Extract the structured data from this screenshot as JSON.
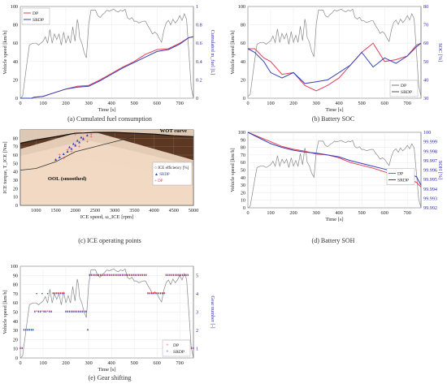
{
  "figure": {
    "captions": [
      "(a) Cumulated fuel consumption",
      "(b) Battery SOC",
      "(c) ICE operating points",
      "(d) Battery SOH",
      "(e) Gear shifting"
    ]
  },
  "chart_data": [
    {
      "id": "a",
      "type": "line",
      "xlabel": "Time [s]",
      "ylabel": "Vehicle speed [km/h]",
      "y2label": "Cumulated m_fuel [L]",
      "xlim": [
        0,
        760
      ],
      "ylim": [
        0,
        100
      ],
      "y2lim": [
        0,
        1
      ],
      "xticks": [
        "0",
        "100",
        "200",
        "300",
        "400",
        "500",
        "600",
        "700"
      ],
      "yticks": [
        "0",
        "20",
        "40",
        "60",
        "80",
        "100"
      ],
      "y2ticks": [
        "0",
        "0.2",
        "0.4",
        "0.6",
        "0.8",
        "1"
      ],
      "legend": [
        "DP",
        "SRDP"
      ],
      "legend_position": "top-left",
      "speed": {
        "x": [
          0,
          10,
          30,
          40,
          55,
          70,
          80,
          100,
          110,
          120,
          130,
          140,
          150,
          160,
          170,
          180,
          190,
          200,
          210,
          220,
          230,
          240,
          250,
          255,
          260,
          270,
          280,
          290,
          300,
          310,
          320,
          330,
          340,
          350,
          360,
          370,
          380,
          390,
          400,
          410,
          420,
          430,
          440,
          450,
          460,
          470,
          480,
          490,
          500,
          510,
          520,
          530,
          540,
          550,
          560,
          570,
          580,
          590,
          600,
          610,
          620,
          630,
          640,
          650,
          660,
          670,
          680,
          690,
          700,
          710,
          720,
          730,
          740,
          750,
          760
        ],
        "y": [
          0,
          2,
          40,
          58,
          60,
          60,
          58,
          62,
          67,
          60,
          75,
          60,
          70,
          64,
          70,
          58,
          72,
          60,
          68,
          60,
          78,
          62,
          86,
          80,
          66,
          60,
          50,
          44,
          80,
          96,
          96,
          96,
          90,
          88,
          91,
          93,
          96,
          95,
          96,
          97,
          95,
          94,
          96,
          95,
          97,
          88,
          86,
          88,
          84,
          84,
          82,
          83,
          84,
          84,
          79,
          75,
          70,
          72,
          70,
          65,
          61,
          74,
          82,
          85,
          80,
          86,
          82,
          85,
          90,
          85,
          92,
          86,
          50,
          12,
          0
        ]
      },
      "series": [
        {
          "name": "DP",
          "x": [
            0,
            50,
            60,
            100,
            150,
            200,
            250,
            300,
            350,
            400,
            450,
            500,
            550,
            600,
            650,
            700,
            740,
            760
          ],
          "y": [
            0,
            0,
            0.01,
            0.02,
            0.06,
            0.1,
            0.13,
            0.14,
            0.2,
            0.27,
            0.34,
            0.4,
            0.48,
            0.53,
            0.54,
            0.6,
            0.66,
            0.67
          ]
        },
        {
          "name": "SRDP",
          "x": [
            0,
            50,
            60,
            100,
            150,
            200,
            250,
            300,
            350,
            400,
            450,
            500,
            550,
            600,
            650,
            700,
            740,
            760
          ],
          "y": [
            0,
            0,
            0.01,
            0.02,
            0.06,
            0.1,
            0.12,
            0.13,
            0.19,
            0.26,
            0.33,
            0.39,
            0.45,
            0.51,
            0.53,
            0.59,
            0.66,
            0.67
          ]
        }
      ]
    },
    {
      "id": "b",
      "type": "line",
      "xlabel": "Time [s]",
      "ylabel": "Vehicle speed [km/h]",
      "y2label": "SOC [%]",
      "xlim": [
        0,
        760
      ],
      "ylim": [
        0,
        100
      ],
      "y2lim": [
        30,
        80
      ],
      "xticks": [
        "0",
        "100",
        "200",
        "300",
        "400",
        "500",
        "600",
        "700"
      ],
      "yticks": [
        "0",
        "20",
        "40",
        "60",
        "80",
        "100"
      ],
      "y2ticks": [
        "30",
        "40",
        "50",
        "60",
        "70",
        "80"
      ],
      "legend": [
        "DP",
        "SRDP"
      ],
      "legend_position": "bottom-right",
      "series": [
        {
          "name": "DP",
          "x": [
            0,
            30,
            70,
            100,
            150,
            200,
            250,
            300,
            350,
            400,
            450,
            500,
            550,
            600,
            650,
            700,
            740,
            760
          ],
          "y": [
            57,
            57,
            52,
            50,
            43,
            44,
            37,
            34,
            37,
            41,
            48,
            55,
            60,
            50,
            51,
            53,
            59,
            60
          ]
        },
        {
          "name": "SRDP",
          "x": [
            0,
            30,
            70,
            100,
            150,
            200,
            250,
            300,
            350,
            400,
            450,
            500,
            550,
            600,
            650,
            700,
            740,
            760
          ],
          "y": [
            57,
            55,
            50,
            44,
            41,
            44,
            38,
            39,
            40,
            44,
            48,
            55,
            47,
            52,
            49,
            53,
            58,
            60
          ]
        }
      ]
    },
    {
      "id": "c",
      "type": "heatmap",
      "xlabel": "ICE speed, ω_ICE [rpm]",
      "ylabel": "ICE torque, T_ICE [Nm]",
      "xlim": [
        600,
        5000
      ],
      "ylim": [
        0,
        90
      ],
      "xticks": [
        "1000",
        "1500",
        "2000",
        "2500",
        "3000",
        "3500",
        "4000",
        "4500",
        "5000"
      ],
      "yticks": [
        "0",
        "10",
        "20",
        "30",
        "40",
        "50",
        "60",
        "70",
        "80"
      ],
      "legend": [
        "ICE efficiency [%]",
        "SRDP",
        "DP"
      ],
      "legend_position": "right",
      "annotations": [
        "WOT curve",
        "OOL (smoothed)"
      ],
      "wot": {
        "x": [
          600,
          1000,
          1500,
          2000,
          2500,
          3000,
          3500,
          4000,
          4500,
          5000
        ],
        "y": [
          74,
          78,
          82,
          86,
          87,
          87,
          86,
          85,
          83,
          82
        ]
      },
      "ool": {
        "x": [
          600,
          1000,
          1500,
          2000,
          2500,
          3000,
          3500
        ],
        "y": [
          42,
          44,
          52,
          64,
          70,
          76,
          82
        ]
      },
      "points": {
        "SRDP": {
          "x": [
            1500,
            1600,
            1700,
            1800,
            1900,
            2000,
            2100,
            2200,
            2300,
            1850,
            1950,
            2050,
            2150
          ],
          "y": [
            55,
            58,
            62,
            65,
            68,
            72,
            76,
            80,
            84,
            70,
            74,
            78,
            82
          ]
        },
        "DP": {
          "x": [
            1600,
            1800,
            2000,
            2200,
            2400,
            1700,
            1900,
            2100,
            2300,
            2000,
            2200,
            1500,
            2400
          ],
          "y": [
            60,
            66,
            72,
            80,
            84,
            56,
            64,
            70,
            76,
            84,
            86,
            54,
            82
          ]
        }
      }
    },
    {
      "id": "d",
      "type": "line",
      "xlabel": "Time [s]",
      "ylabel": "Vehicle speed [km/h]",
      "y2label": "SOH [%]",
      "xlim": [
        0,
        760
      ],
      "ylim": [
        0,
        100
      ],
      "y2lim": [
        99.992,
        100
      ],
      "xticks": [
        "0",
        "100",
        "200",
        "300",
        "400",
        "500",
        "600",
        "700"
      ],
      "yticks": [
        "0",
        "10",
        "20",
        "30",
        "40",
        "50",
        "60",
        "70",
        "80",
        "90",
        "100"
      ],
      "y2ticks": [
        "99.992",
        "99.993",
        "99.994",
        "99.995",
        "99.996",
        "99.997",
        "99.998",
        "99.999",
        "100"
      ],
      "legend": [
        "DP",
        "SRDP"
      ],
      "legend_position": "center-right",
      "series": [
        {
          "name": "DP",
          "x": [
            0,
            50,
            100,
            150,
            200,
            250,
            300,
            350,
            400,
            450,
            500,
            550,
            600,
            650,
            700,
            740,
            760
          ],
          "y": [
            100,
            99.9995,
            99.999,
            99.9985,
            99.9982,
            99.998,
            99.9977,
            99.9976,
            99.9973,
            99.9968,
            99.9965,
            99.9962,
            99.9958,
            99.9955,
            99.9951,
            99.9947,
            99.9942
          ]
        },
        {
          "name": "SRDP",
          "x": [
            0,
            50,
            100,
            150,
            200,
            250,
            300,
            350,
            400,
            450,
            500,
            550,
            600,
            650,
            700,
            740,
            760
          ],
          "y": [
            100,
            99.9994,
            99.9988,
            99.9984,
            99.9981,
            99.9979,
            99.9978,
            99.9976,
            99.9974,
            99.997,
            99.9967,
            99.9964,
            99.9961,
            99.9958,
            99.9956,
            99.9953,
            99.9944
          ]
        }
      ]
    },
    {
      "id": "e",
      "type": "scatter",
      "xlabel": "Time [s]",
      "ylabel": "Vehicle speed [km/h]",
      "y2label": "Gear number [-]",
      "xlim": [
        0,
        760
      ],
      "ylim": [
        0,
        100
      ],
      "y2lim": [
        0.5,
        5.5
      ],
      "xticks": [
        "0",
        "100",
        "200",
        "300",
        "400",
        "500",
        "600",
        "700"
      ],
      "yticks": [
        "0",
        "10",
        "20",
        "30",
        "40",
        "50",
        "60",
        "70",
        "80",
        "90",
        "100"
      ],
      "y2ticks": [
        "1",
        "2",
        "3",
        "4",
        "5"
      ],
      "legend": [
        "DP",
        "SRDP"
      ],
      "legend_position": "bottom-right"
    }
  ]
}
